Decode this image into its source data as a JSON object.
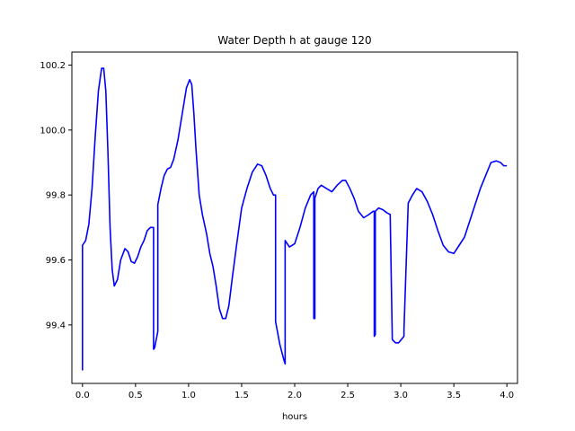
{
  "chart_data": {
    "type": "line",
    "title": "Water Depth h at gauge 120",
    "xlabel": "hours",
    "ylabel": "",
    "xlim": [
      -0.1,
      4.1
    ],
    "ylim": [
      99.22,
      100.24
    ],
    "xticks": [
      0.0,
      0.5,
      1.0,
      1.5,
      2.0,
      2.5,
      3.0,
      3.5,
      4.0
    ],
    "xtick_labels": [
      "0.0",
      "0.5",
      "1.0",
      "1.5",
      "2.0",
      "2.5",
      "3.0",
      "3.5",
      "4.0"
    ],
    "yticks": [
      99.4,
      99.6,
      99.8,
      100.0,
      100.2
    ],
    "ytick_labels": [
      "99.4",
      "99.6",
      "99.8",
      "100.0",
      "100.2"
    ],
    "grid": false,
    "series": [
      {
        "color": "#0000ff",
        "x": [
          0.0,
          0.0,
          0.03,
          0.06,
          0.09,
          0.12,
          0.15,
          0.18,
          0.2,
          0.22,
          0.24,
          0.26,
          0.28,
          0.3,
          0.33,
          0.36,
          0.4,
          0.43,
          0.46,
          0.49,
          0.52,
          0.55,
          0.58,
          0.61,
          0.64,
          0.67,
          0.67,
          0.68,
          0.71,
          0.71,
          0.74,
          0.77,
          0.8,
          0.83,
          0.86,
          0.9,
          0.94,
          0.98,
          1.01,
          1.03,
          1.05,
          1.07,
          1.1,
          1.13,
          1.17,
          1.2,
          1.23,
          1.26,
          1.29,
          1.32,
          1.35,
          1.38,
          1.41,
          1.45,
          1.5,
          1.55,
          1.6,
          1.65,
          1.69,
          1.73,
          1.77,
          1.8,
          1.82,
          1.82,
          1.86,
          1.9,
          1.91,
          1.91,
          1.95,
          2.0,
          2.05,
          2.1,
          2.15,
          2.18,
          2.18,
          2.19,
          2.19,
          2.22,
          2.25,
          2.3,
          2.35,
          2.4,
          2.45,
          2.48,
          2.52,
          2.56,
          2.6,
          2.65,
          2.7,
          2.74,
          2.75,
          2.75,
          2.76,
          2.76,
          2.79,
          2.83,
          2.87,
          2.9,
          2.9,
          2.92,
          2.95,
          2.98,
          3.03,
          3.03,
          3.07,
          3.11,
          3.15,
          3.2,
          3.25,
          3.3,
          3.35,
          3.4,
          3.45,
          3.5,
          3.55,
          3.6,
          3.65,
          3.7,
          3.75,
          3.8,
          3.85,
          3.9,
          3.94,
          3.97,
          4.0
        ],
        "y": [
          99.26,
          99.645,
          99.66,
          99.71,
          99.82,
          99.98,
          100.12,
          100.19,
          100.19,
          100.12,
          99.93,
          99.7,
          99.57,
          99.52,
          99.54,
          99.6,
          99.635,
          99.625,
          99.595,
          99.59,
          99.61,
          99.64,
          99.66,
          99.69,
          99.7,
          99.7,
          99.325,
          99.33,
          99.38,
          99.77,
          99.82,
          99.86,
          99.88,
          99.885,
          99.91,
          99.97,
          100.05,
          100.13,
          100.155,
          100.14,
          100.05,
          99.94,
          99.8,
          99.74,
          99.68,
          99.62,
          99.58,
          99.52,
          99.45,
          99.42,
          99.42,
          99.46,
          99.54,
          99.64,
          99.76,
          99.82,
          99.87,
          99.895,
          99.89,
          99.86,
          99.82,
          99.8,
          99.8,
          99.41,
          99.34,
          99.29,
          99.28,
          99.66,
          99.64,
          99.65,
          99.7,
          99.76,
          99.8,
          99.81,
          99.42,
          99.42,
          99.79,
          99.82,
          99.83,
          99.82,
          99.81,
          99.83,
          99.845,
          99.845,
          99.82,
          99.79,
          99.75,
          99.73,
          99.74,
          99.75,
          99.75,
          99.365,
          99.37,
          99.75,
          99.76,
          99.755,
          99.745,
          99.74,
          99.74,
          99.355,
          99.345,
          99.345,
          99.365,
          99.385,
          99.775,
          99.8,
          99.82,
          99.81,
          99.78,
          99.74,
          99.69,
          99.645,
          99.625,
          99.62,
          99.645,
          99.67,
          99.72,
          99.77,
          99.82,
          99.86,
          99.9,
          99.905,
          99.9,
          99.89,
          99.89
        ]
      }
    ]
  }
}
